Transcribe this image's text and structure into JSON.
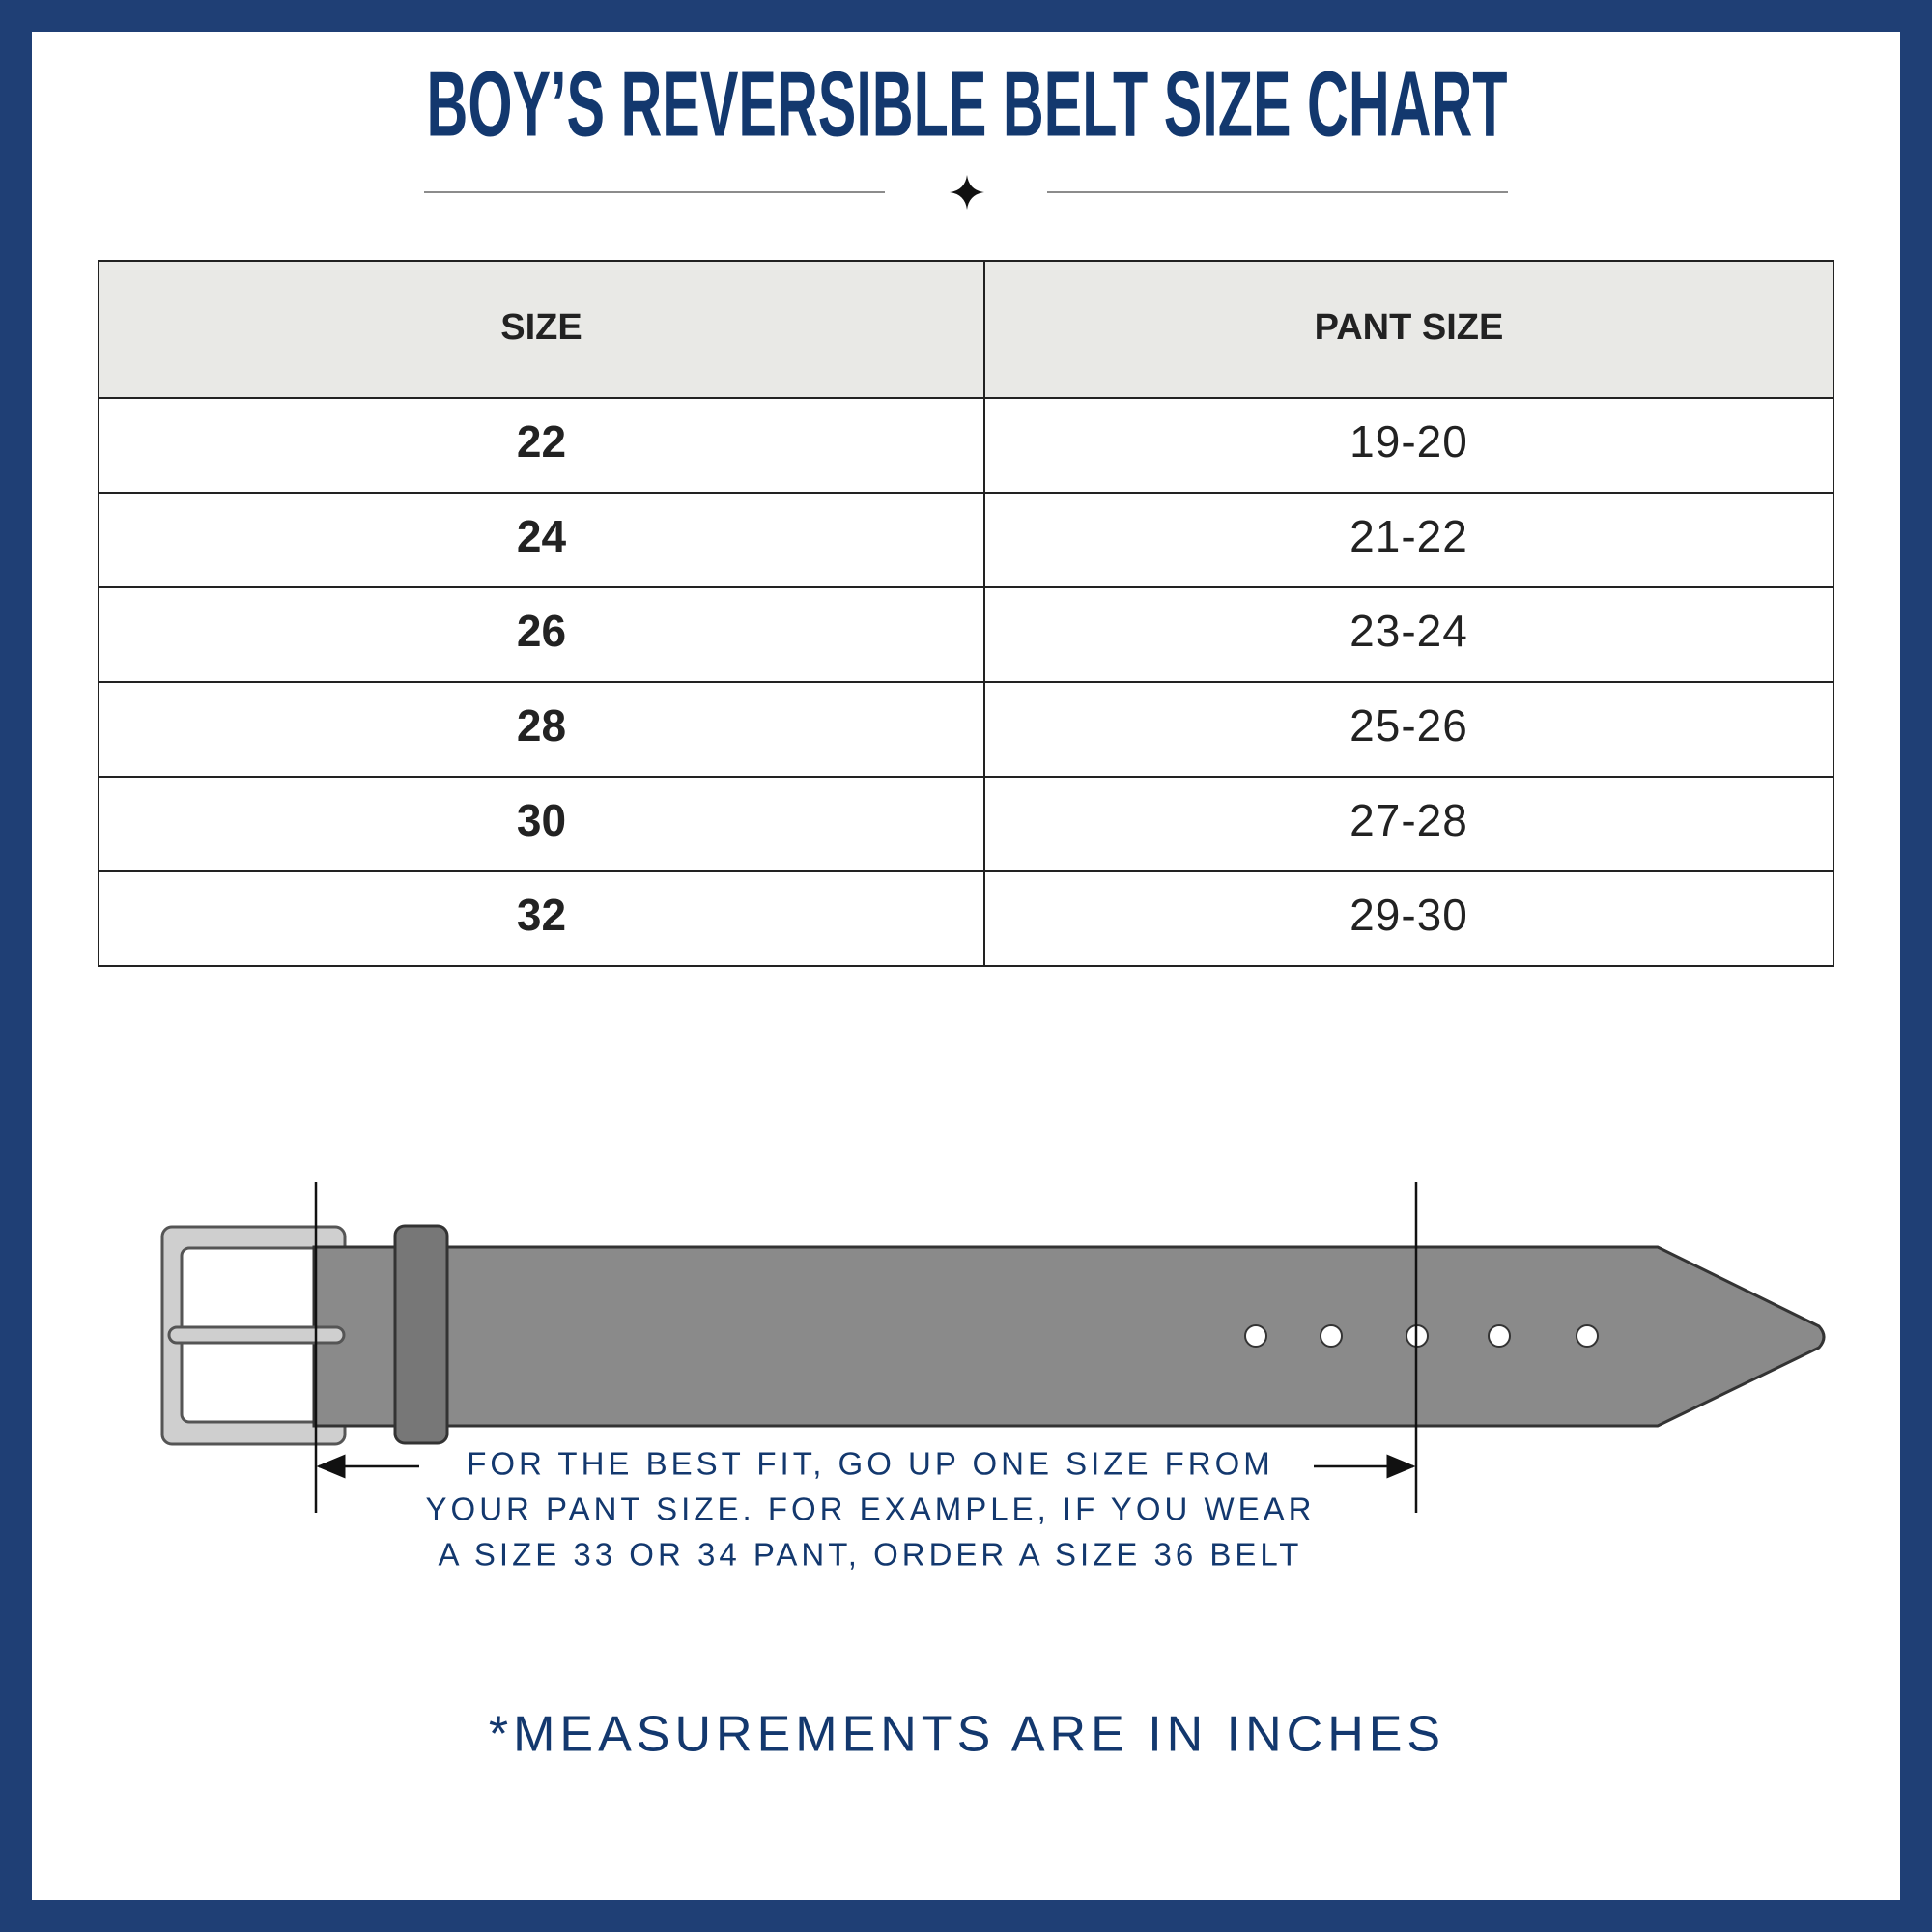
{
  "header": {
    "title": "BOY’S REVERSIBLE BELT SIZE CHART"
  },
  "table": {
    "columns": [
      "SIZE",
      "PANT SIZE"
    ],
    "rows": [
      [
        "22",
        "19-20"
      ],
      [
        "24",
        "21-22"
      ],
      [
        "26",
        "23-24"
      ],
      [
        "28",
        "25-26"
      ],
      [
        "30",
        "27-28"
      ],
      [
        "32",
        "29-30"
      ]
    ]
  },
  "note": {
    "lines": [
      "FOR THE BEST FIT, GO UP ONE SIZE FROM",
      "YOUR PANT SIZE. FOR EXAMPLE, IF YOU WEAR",
      "A SIZE 33 OR 34 PANT, ORDER A SIZE 36 BELT"
    ]
  },
  "footer": {
    "text": "*MEASUREMENTS ARE IN INCHES"
  }
}
